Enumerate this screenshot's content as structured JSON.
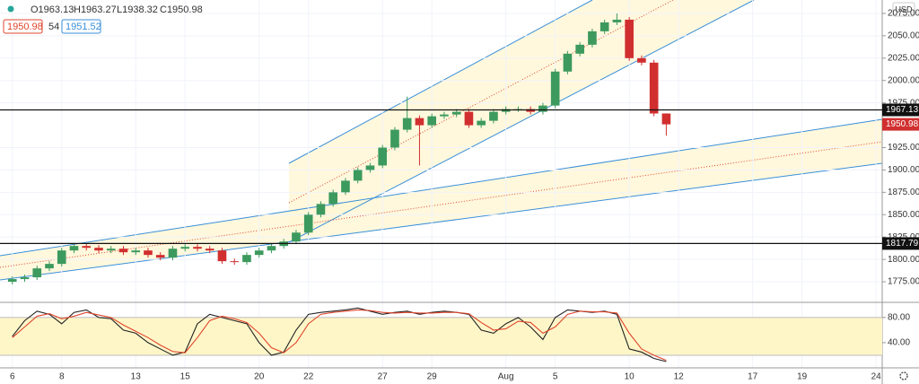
{
  "header": {
    "ohlc": [
      "O1963.13",
      "H1963.27",
      "L1938.32",
      "C1950.98"
    ],
    "bid": "1950.98",
    "spread": "54",
    "ask": "1951.52",
    "currency": "USD"
  },
  "chart_data": [
    {
      "type": "candlestick",
      "x": [
        0,
        0.5,
        1,
        1.5,
        2,
        2.5,
        3,
        3.5,
        4,
        4.5,
        5,
        5.5,
        6,
        6.5,
        7,
        7.5,
        8,
        8.5,
        9,
        9.5,
        10,
        10.5,
        11,
        11.5,
        12,
        12.5,
        13,
        13.5,
        14,
        14.5,
        15,
        15.5,
        16,
        16.5,
        17,
        17.5,
        18,
        18.5,
        19,
        19.5,
        20,
        20.5,
        21,
        21.5,
        22,
        22.5,
        23,
        23.5,
        24,
        24.5,
        25,
        25.5,
        26,
        26.5
      ],
      "open": [
        1775,
        1778,
        1780,
        1790,
        1795,
        1810,
        1815,
        1813,
        1810,
        1812,
        1808,
        1810,
        1805,
        1802,
        1812,
        1814,
        1812,
        1810,
        1798,
        1797,
        1805,
        1810,
        1815,
        1820,
        1830,
        1850,
        1862,
        1875,
        1888,
        1900,
        1905,
        1925,
        1945,
        1958,
        1950,
        1960,
        1962,
        1965,
        1950,
        1955,
        1965,
        1968,
        1968,
        1965,
        1972,
        2010,
        2030,
        2040,
        2055,
        2065,
        2068,
        2025,
        2020,
        1963.13
      ],
      "high": [
        1781,
        1783,
        1793,
        1798,
        1813,
        1818,
        1818,
        1816,
        1815,
        1815,
        1813,
        1813,
        1808,
        1815,
        1817,
        1817,
        1815,
        1813,
        1801,
        1808,
        1813,
        1818,
        1823,
        1833,
        1853,
        1865,
        1878,
        1891,
        1903,
        1908,
        1928,
        1948,
        1982,
        1961,
        1963,
        1965,
        1968,
        1968,
        1958,
        1968,
        1971,
        1971,
        1971,
        1975,
        2013,
        2033,
        2043,
        2058,
        2068,
        2075,
        2071,
        2028,
        2023,
        1963.27
      ],
      "low": [
        1772,
        1775,
        1777,
        1787,
        1792,
        1807,
        1810,
        1807,
        1807,
        1805,
        1805,
        1802,
        1799,
        1799,
        1809,
        1809,
        1807,
        1795,
        1794,
        1794,
        1802,
        1807,
        1812,
        1817,
        1827,
        1847,
        1859,
        1872,
        1885,
        1897,
        1902,
        1922,
        1942,
        1905,
        1947,
        1957,
        1959,
        1947,
        1947,
        1952,
        1962,
        1965,
        1962,
        1962,
        1969,
        2007,
        2027,
        2037,
        2052,
        2062,
        2022,
        2017,
        1960,
        1938.32
      ],
      "close": [
        1778,
        1780,
        1790,
        1795,
        1810,
        1815,
        1813,
        1810,
        1812,
        1808,
        1810,
        1805,
        1802,
        1812,
        1814,
        1812,
        1810,
        1798,
        1797,
        1805,
        1810,
        1815,
        1820,
        1830,
        1850,
        1862,
        1875,
        1888,
        1900,
        1905,
        1925,
        1945,
        1958,
        1950,
        1960,
        1962,
        1965,
        1950,
        1955,
        1965,
        1968,
        1968,
        1965,
        1972,
        2010,
        2030,
        2040,
        2055,
        2065,
        2068,
        2025,
        2020,
        1963.13,
        1950.98
      ],
      "up_color": "#3d9a5e",
      "down_color": "#d12f2f",
      "xlim": [
        -0.5,
        35.25
      ],
      "xticks": [
        {
          "value": 0,
          "label": "6"
        },
        {
          "value": 2,
          "label": "8"
        },
        {
          "value": 5,
          "label": "13"
        },
        {
          "value": 7,
          "label": "15"
        },
        {
          "value": 10,
          "label": "20"
        },
        {
          "value": 12,
          "label": "22"
        },
        {
          "value": 15,
          "label": "27"
        },
        {
          "value": 17,
          "label": "29"
        },
        {
          "value": 20,
          "label": "Aug"
        },
        {
          "value": 22,
          "label": "5"
        },
        {
          "value": 25,
          "label": "10"
        },
        {
          "value": 27,
          "label": "12"
        },
        {
          "value": 30,
          "label": "17"
        },
        {
          "value": 32,
          "label": "19"
        },
        {
          "value": 35,
          "label": "24"
        }
      ],
      "ylim": [
        1752,
        2090
      ],
      "yticks": [
        {
          "value": 1775,
          "label": "1775.00"
        },
        {
          "value": 1800,
          "label": "1800.00"
        },
        {
          "value": 1825,
          "label": "1825.00"
        },
        {
          "value": 1850,
          "label": "1850.00"
        },
        {
          "value": 1875,
          "label": "1875.00"
        },
        {
          "value": 1900,
          "label": "1900.00"
        },
        {
          "value": 1925,
          "label": "1925.00"
        },
        {
          "value": 1975,
          "label": "1975.00"
        },
        {
          "value": 2000,
          "label": "2000.00"
        },
        {
          "value": 2025,
          "label": "2025.00"
        },
        {
          "value": 2050,
          "label": "2050.00"
        },
        {
          "value": 2075,
          "label": "2075.00"
        }
      ],
      "hlines": [
        1967.13,
        1817.79
      ],
      "last_price": 1950.98
    },
    {
      "type": "line",
      "x": [
        0,
        0.5,
        1,
        1.5,
        2,
        2.5,
        3,
        3.5,
        4,
        4.5,
        5,
        5.5,
        6,
        6.5,
        7,
        7.5,
        8,
        8.5,
        9,
        9.5,
        10,
        10.5,
        11,
        11.5,
        12,
        12.5,
        13,
        13.5,
        14,
        14.5,
        15,
        15.5,
        16,
        16.5,
        17,
        17.5,
        18,
        18.5,
        19,
        19.5,
        20,
        20.5,
        21,
        21.5,
        22,
        22.5,
        23,
        23.5,
        24,
        24.5,
        25,
        25.5,
        26,
        26.5
      ],
      "series": [
        {
          "color": "#222222",
          "values": [
            50,
            75,
            90,
            85,
            70,
            88,
            92,
            80,
            78,
            60,
            55,
            40,
            30,
            20,
            25,
            70,
            85,
            80,
            75,
            70,
            40,
            20,
            25,
            60,
            85,
            88,
            90,
            92,
            95,
            90,
            85,
            88,
            90,
            85,
            88,
            90,
            88,
            85,
            60,
            55,
            70,
            80,
            65,
            45,
            80,
            92,
            90,
            88,
            90,
            85,
            30,
            25,
            15,
            10
          ]
        },
        {
          "color": "#e0452b",
          "values": [
            48,
            65,
            82,
            86,
            78,
            82,
            88,
            84,
            80,
            68,
            58,
            48,
            36,
            26,
            24,
            48,
            75,
            82,
            78,
            72,
            55,
            32,
            24,
            40,
            70,
            85,
            88,
            90,
            92,
            91,
            88,
            87,
            88,
            87,
            87,
            88,
            88,
            86,
            72,
            60,
            62,
            74,
            72,
            55,
            65,
            85,
            90,
            89,
            89,
            87,
            55,
            30,
            20,
            12
          ]
        }
      ],
      "xlim": [
        -0.5,
        35.25
      ],
      "ylim": [
        0,
        104
      ],
      "yticks": [
        {
          "value": 80,
          "label": "80.00"
        },
        {
          "value": 40,
          "label": "40.00"
        }
      ],
      "band": [
        20,
        80
      ]
    }
  ]
}
